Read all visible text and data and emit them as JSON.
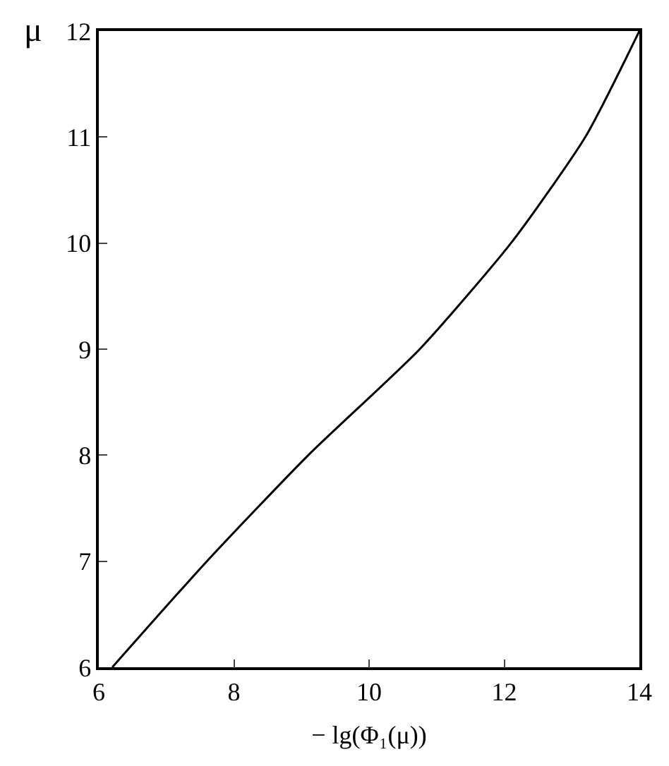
{
  "chart_data": {
    "type": "line",
    "xlabel": "− lg(Φ₁(μ))",
    "ylabel": "μ",
    "x": [
      6.2,
      7.6,
      9.1,
      10.75,
      12.1,
      13.2,
      14
    ],
    "series": [
      {
        "color": "#000000",
        "values": [
          6,
          7,
          8,
          9,
          10,
          11,
          12
        ]
      }
    ],
    "xlim": [
      6,
      14
    ],
    "xticks": [
      6,
      8,
      10,
      12,
      14
    ],
    "ylim": [
      6,
      12
    ],
    "yticks": [
      6,
      7,
      8,
      9,
      10,
      11,
      12
    ],
    "legend": false,
    "marker": "none",
    "line_style": "solid"
  }
}
